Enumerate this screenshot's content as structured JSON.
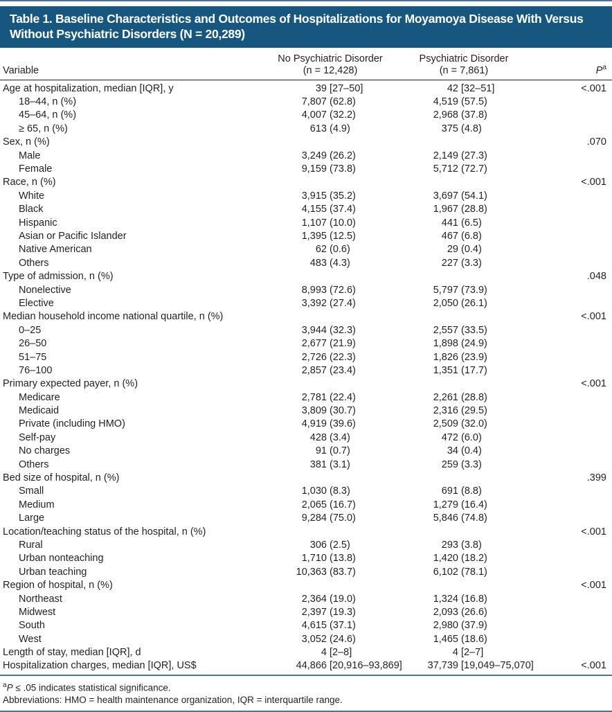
{
  "title": "Table 1. Baseline Characteristics and Outcomes of Hospitalizations for Moyamoya Disease With Versus Without Psychiatric Disorders (N = 20,289)",
  "columns": {
    "variable": "Variable",
    "col1_line1": "No Psychiatric Disorder",
    "col1_line2": "(n = 12,428)",
    "col2_line1": "Psychiatric Disorder",
    "col2_line2": "(n = 7,861)",
    "p_label": "P",
    "p_sup": "a"
  },
  "rows": [
    {
      "label": "Age at hospitalization, median [IQR], y",
      "indent": 0,
      "v1": "39 [27–50]",
      "v2": "42 [32–51]",
      "p": "<.001"
    },
    {
      "label": "18–44, n (%)",
      "indent": 1,
      "v1": "7,807 (62.8)",
      "v2": "4,519 (57.5)",
      "p": ""
    },
    {
      "label": "45–64, n (%)",
      "indent": 1,
      "v1": "4,007 (32.2)",
      "v2": "2,968 (37.8)",
      "p": ""
    },
    {
      "label": "≥ 65, n (%)",
      "indent": 1,
      "v1": "613 (4.9)",
      "v2": "375 (4.8)",
      "p": ""
    },
    {
      "label": "Sex, n (%)",
      "indent": 0,
      "v1": "",
      "v2": "",
      "p": ".070"
    },
    {
      "label": "Male",
      "indent": 1,
      "v1": "3,249 (26.2)",
      "v2": "2,149 (27.3)",
      "p": ""
    },
    {
      "label": "Female",
      "indent": 1,
      "v1": "9,159 (73.8)",
      "v2": "5,712 (72.7)",
      "p": ""
    },
    {
      "label": "Race, n (%)",
      "indent": 0,
      "v1": "",
      "v2": "",
      "p": "<.001"
    },
    {
      "label": "White",
      "indent": 1,
      "v1": "3,915 (35.2)",
      "v2": "3,697 (54.1)",
      "p": ""
    },
    {
      "label": "Black",
      "indent": 1,
      "v1": "4,155 (37.4)",
      "v2": "1,967 (28.8)",
      "p": ""
    },
    {
      "label": "Hispanic",
      "indent": 1,
      "v1": "1,107 (10.0)",
      "v2": "441 (6.5)",
      "p": ""
    },
    {
      "label": "Asian or Pacific Islander",
      "indent": 1,
      "v1": "1,395 (12.5)",
      "v2": "467 (6.8)",
      "p": ""
    },
    {
      "label": "Native American",
      "indent": 1,
      "v1": "62 (0.6)",
      "v2": "29 (0.4)",
      "p": ""
    },
    {
      "label": "Others",
      "indent": 1,
      "v1": "483 (4.3)",
      "v2": "227 (3.3)",
      "p": ""
    },
    {
      "label": "Type of admission, n (%)",
      "indent": 0,
      "v1": "",
      "v2": "",
      "p": ".048"
    },
    {
      "label": "Nonelective",
      "indent": 1,
      "v1": "8,993 (72.6)",
      "v2": "5,797 (73.9)",
      "p": ""
    },
    {
      "label": "Elective",
      "indent": 1,
      "v1": "3,392 (27.4)",
      "v2": "2,050 (26.1)",
      "p": ""
    },
    {
      "label": "Median household income national quartile, n (%)",
      "indent": 0,
      "v1": "",
      "v2": "",
      "p": "<.001"
    },
    {
      "label": "0–25",
      "indent": 1,
      "v1": "3,944 (32.3)",
      "v2": "2,557 (33.5)",
      "p": ""
    },
    {
      "label": "26–50",
      "indent": 1,
      "v1": "2,677 (21.9)",
      "v2": "1,898 (24.9)",
      "p": ""
    },
    {
      "label": "51–75",
      "indent": 1,
      "v1": "2,726 (22.3)",
      "v2": "1,826 (23.9)",
      "p": ""
    },
    {
      "label": "76–100",
      "indent": 1,
      "v1": "2,857 (23.4)",
      "v2": "1,351 (17.7)",
      "p": ""
    },
    {
      "label": "Primary expected payer, n (%)",
      "indent": 0,
      "v1": "",
      "v2": "",
      "p": "<.001"
    },
    {
      "label": "Medicare",
      "indent": 1,
      "v1": "2,781 (22.4)",
      "v2": "2,261 (28.8)",
      "p": ""
    },
    {
      "label": "Medicaid",
      "indent": 1,
      "v1": "3,809 (30.7)",
      "v2": "2,316 (29.5)",
      "p": ""
    },
    {
      "label": "Private (including HMO)",
      "indent": 1,
      "v1": "4,919 (39.6)",
      "v2": "2,509 (32.0)",
      "p": ""
    },
    {
      "label": "Self-pay",
      "indent": 1,
      "v1": "428 (3.4)",
      "v2": "472 (6.0)",
      "p": ""
    },
    {
      "label": "No charges",
      "indent": 1,
      "v1": "91 (0.7)",
      "v2": "34 (0.4)",
      "p": ""
    },
    {
      "label": "Others",
      "indent": 1,
      "v1": "381 (3.1)",
      "v2": "259 (3.3)",
      "p": ""
    },
    {
      "label": "Bed size of hospital, n (%)",
      "indent": 0,
      "v1": "",
      "v2": "",
      "p": ".399"
    },
    {
      "label": "Small",
      "indent": 1,
      "v1": "1,030 (8.3)",
      "v2": "691 (8.8)",
      "p": ""
    },
    {
      "label": "Medium",
      "indent": 1,
      "v1": "2,065 (16.7)",
      "v2": "1,279 (16.4)",
      "p": ""
    },
    {
      "label": "Large",
      "indent": 1,
      "v1": "9,284 (75.0)",
      "v2": "5,846 (74.8)",
      "p": ""
    },
    {
      "label": "Location/teaching status of the hospital, n (%)",
      "indent": 0,
      "v1": "",
      "v2": "",
      "p": "<.001"
    },
    {
      "label": "Rural",
      "indent": 1,
      "v1": "306 (2.5)",
      "v2": "293 (3.8)",
      "p": ""
    },
    {
      "label": "Urban nonteaching",
      "indent": 1,
      "v1": "1,710 (13.8)",
      "v2": "1,420 (18.2)",
      "p": ""
    },
    {
      "label": "Urban teaching",
      "indent": 1,
      "v1": "10,363 (83.7)",
      "v2": "6,102 (78.1)",
      "p": ""
    },
    {
      "label": "Region of hospital, n (%)",
      "indent": 0,
      "v1": "",
      "v2": "",
      "p": "<.001"
    },
    {
      "label": "Northeast",
      "indent": 1,
      "v1": "2,364 (19.0)",
      "v2": "1,324 (16.8)",
      "p": ""
    },
    {
      "label": "Midwest",
      "indent": 1,
      "v1": "2,397 (19.3)",
      "v2": "2,093 (26.6)",
      "p": ""
    },
    {
      "label": "South",
      "indent": 1,
      "v1": "4,615 (37.1)",
      "v2": "2,980 (37.9)",
      "p": ""
    },
    {
      "label": "West",
      "indent": 1,
      "v1": "3,052 (24.6)",
      "v2": "1,465 (18.6)",
      "p": ""
    },
    {
      "label": "Length of stay, median [IQR], d",
      "indent": 0,
      "v1": "4 [2–8]",
      "v2": "4 [2–7]",
      "p": ""
    },
    {
      "label": "Hospitalization charges, median [IQR], US$",
      "indent": 0,
      "v1": "44,866 [20,916–93,869]",
      "v2": "37,739 [19,049–75,070]",
      "p": "<.001"
    }
  ],
  "footnotes": {
    "sig_marker": "a",
    "sig_p": "P",
    "sig_rest": " ≤ .05 indicates statistical significance.",
    "abbreviations": "Abbreviations: HMO = health maintenance organization, IQR = interquartile range."
  },
  "colors": {
    "title_bar_background": "#17567e",
    "title_text": "#ffffff",
    "body_text": "#231f20",
    "rule_blue": "#3d7ba1",
    "header_rule_dark": "#231f20"
  }
}
